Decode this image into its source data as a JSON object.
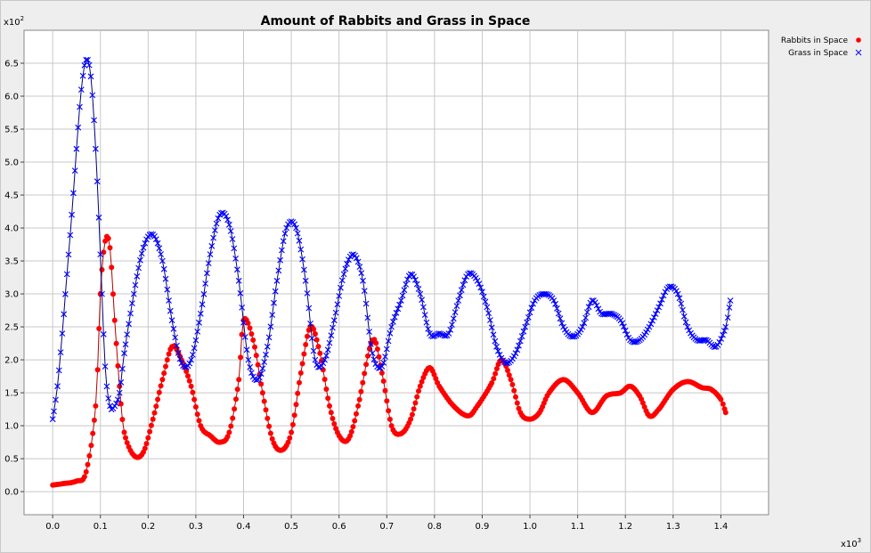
{
  "chart_data": {
    "type": "line",
    "title": "Amount of Rabbits and Grass in Space",
    "xlabel": "",
    "ylabel": "",
    "x_multiplier_label": "x10",
    "x_multiplier_exp": "3",
    "y_multiplier_label": "x10",
    "y_multiplier_exp": "2",
    "xlim": [
      -0.06,
      1.5
    ],
    "ylim": [
      -0.35,
      7.0
    ],
    "x_ticks": [
      "0.0",
      "0.1",
      "0.2",
      "0.3",
      "0.4",
      "0.5",
      "0.6",
      "0.7",
      "0.8",
      "0.9",
      "1.0",
      "1.1",
      "1.2",
      "1.3",
      "1.4"
    ],
    "y_ticks": [
      "0.0",
      "0.5",
      "1.0",
      "1.5",
      "2.0",
      "2.5",
      "3.0",
      "3.5",
      "4.0",
      "4.5",
      "5.0",
      "5.5",
      "6.0",
      "6.5"
    ],
    "legend_position": "top-right",
    "series": [
      {
        "name": "Rabbits in Space",
        "marker": "circle",
        "color": "#ff0000",
        "points": [
          [
            0.0,
            0.1
          ],
          [
            0.02,
            0.12
          ],
          [
            0.05,
            0.16
          ],
          [
            0.07,
            0.3
          ],
          [
            0.09,
            1.3
          ],
          [
            0.1,
            3.0
          ],
          [
            0.11,
            3.8
          ],
          [
            0.12,
            3.7
          ],
          [
            0.13,
            2.6
          ],
          [
            0.14,
            1.6
          ],
          [
            0.15,
            0.9
          ],
          [
            0.17,
            0.55
          ],
          [
            0.19,
            0.6
          ],
          [
            0.21,
            1.1
          ],
          [
            0.23,
            1.7
          ],
          [
            0.25,
            2.2
          ],
          [
            0.27,
            2.0
          ],
          [
            0.29,
            1.6
          ],
          [
            0.31,
            1.0
          ],
          [
            0.33,
            0.85
          ],
          [
            0.35,
            0.75
          ],
          [
            0.37,
            0.9
          ],
          [
            0.39,
            1.7
          ],
          [
            0.4,
            2.6
          ],
          [
            0.42,
            2.3
          ],
          [
            0.44,
            1.5
          ],
          [
            0.46,
            0.8
          ],
          [
            0.48,
            0.63
          ],
          [
            0.5,
            0.9
          ],
          [
            0.52,
            1.8
          ],
          [
            0.54,
            2.5
          ],
          [
            0.56,
            2.1
          ],
          [
            0.58,
            1.3
          ],
          [
            0.6,
            0.85
          ],
          [
            0.62,
            0.8
          ],
          [
            0.64,
            1.3
          ],
          [
            0.67,
            2.3
          ],
          [
            0.69,
            1.8
          ],
          [
            0.71,
            1.0
          ],
          [
            0.73,
            0.88
          ],
          [
            0.75,
            1.1
          ],
          [
            0.77,
            1.6
          ],
          [
            0.79,
            1.88
          ],
          [
            0.81,
            1.6
          ],
          [
            0.84,
            1.3
          ],
          [
            0.87,
            1.15
          ],
          [
            0.89,
            1.3
          ],
          [
            0.92,
            1.65
          ],
          [
            0.94,
            2.0
          ],
          [
            0.96,
            1.7
          ],
          [
            0.98,
            1.2
          ],
          [
            1.0,
            1.1
          ],
          [
            1.02,
            1.2
          ],
          [
            1.04,
            1.5
          ],
          [
            1.07,
            1.7
          ],
          [
            1.1,
            1.5
          ],
          [
            1.13,
            1.2
          ],
          [
            1.16,
            1.45
          ],
          [
            1.19,
            1.5
          ],
          [
            1.21,
            1.6
          ],
          [
            1.23,
            1.45
          ],
          [
            1.25,
            1.15
          ],
          [
            1.27,
            1.25
          ],
          [
            1.3,
            1.55
          ],
          [
            1.33,
            1.67
          ],
          [
            1.36,
            1.58
          ],
          [
            1.38,
            1.55
          ],
          [
            1.4,
            1.4
          ],
          [
            1.41,
            1.2
          ]
        ]
      },
      {
        "name": "Grass in Space",
        "marker": "x",
        "color": "#0000ff",
        "points": [
          [
            0.0,
            1.1
          ],
          [
            0.01,
            1.6
          ],
          [
            0.02,
            2.4
          ],
          [
            0.03,
            3.3
          ],
          [
            0.04,
            4.2
          ],
          [
            0.05,
            5.2
          ],
          [
            0.06,
            6.1
          ],
          [
            0.07,
            6.55
          ],
          [
            0.08,
            6.3
          ],
          [
            0.09,
            5.2
          ],
          [
            0.1,
            3.6
          ],
          [
            0.11,
            1.9
          ],
          [
            0.12,
            1.3
          ],
          [
            0.13,
            1.3
          ],
          [
            0.14,
            1.5
          ],
          [
            0.15,
            2.1
          ],
          [
            0.17,
            3.0
          ],
          [
            0.19,
            3.7
          ],
          [
            0.21,
            3.9
          ],
          [
            0.23,
            3.5
          ],
          [
            0.25,
            2.6
          ],
          [
            0.27,
            1.95
          ],
          [
            0.29,
            2.0
          ],
          [
            0.31,
            2.7
          ],
          [
            0.33,
            3.6
          ],
          [
            0.35,
            4.2
          ],
          [
            0.37,
            4.05
          ],
          [
            0.39,
            3.2
          ],
          [
            0.41,
            2.0
          ],
          [
            0.43,
            1.7
          ],
          [
            0.45,
            2.2
          ],
          [
            0.47,
            3.2
          ],
          [
            0.49,
            4.0
          ],
          [
            0.51,
            4.0
          ],
          [
            0.53,
            3.2
          ],
          [
            0.55,
            2.0
          ],
          [
            0.57,
            2.0
          ],
          [
            0.59,
            2.6
          ],
          [
            0.61,
            3.3
          ],
          [
            0.63,
            3.6
          ],
          [
            0.65,
            3.2
          ],
          [
            0.67,
            2.1
          ],
          [
            0.69,
            1.9
          ],
          [
            0.71,
            2.5
          ],
          [
            0.73,
            2.9
          ],
          [
            0.75,
            3.3
          ],
          [
            0.77,
            3.0
          ],
          [
            0.79,
            2.4
          ],
          [
            0.81,
            2.4
          ],
          [
            0.83,
            2.4
          ],
          [
            0.85,
            2.9
          ],
          [
            0.87,
            3.3
          ],
          [
            0.89,
            3.2
          ],
          [
            0.91,
            2.8
          ],
          [
            0.93,
            2.2
          ],
          [
            0.95,
            1.95
          ],
          [
            0.97,
            2.1
          ],
          [
            0.99,
            2.5
          ],
          [
            1.01,
            2.9
          ],
          [
            1.03,
            3.0
          ],
          [
            1.05,
            2.9
          ],
          [
            1.07,
            2.5
          ],
          [
            1.09,
            2.35
          ],
          [
            1.11,
            2.5
          ],
          [
            1.13,
            2.9
          ],
          [
            1.15,
            2.7
          ],
          [
            1.17,
            2.7
          ],
          [
            1.19,
            2.6
          ],
          [
            1.21,
            2.3
          ],
          [
            1.23,
            2.3
          ],
          [
            1.25,
            2.5
          ],
          [
            1.27,
            2.8
          ],
          [
            1.29,
            3.1
          ],
          [
            1.31,
            3.0
          ],
          [
            1.33,
            2.5
          ],
          [
            1.35,
            2.3
          ],
          [
            1.37,
            2.3
          ],
          [
            1.39,
            2.2
          ],
          [
            1.41,
            2.5
          ],
          [
            1.42,
            2.9
          ]
        ]
      }
    ]
  }
}
